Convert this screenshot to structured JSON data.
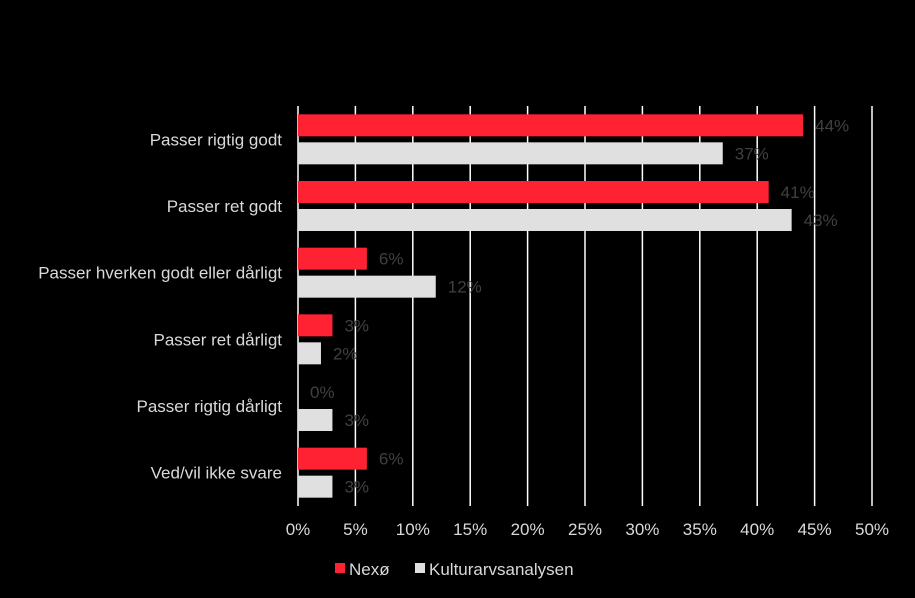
{
  "chart_data": {
    "type": "bar",
    "orientation": "horizontal",
    "categories": [
      "Passer rigtig godt",
      "Passer ret godt",
      "Passer hverken godt eller dårligt",
      "Passer ret dårligt",
      "Passer rigtig dårligt",
      "Ved/vil ikke svare"
    ],
    "series": [
      {
        "name": "Nexø",
        "color": "#ff2233",
        "values": [
          44,
          41,
          6,
          3,
          0,
          6
        ],
        "labels": [
          "44%",
          "41%",
          "6%",
          "3%",
          "0%",
          "6%"
        ]
      },
      {
        "name": "Kulturarvsanalysen",
        "color": "#e0e0e0",
        "values": [
          37,
          43,
          12,
          2,
          3,
          3
        ],
        "labels": [
          "37%",
          "43%",
          "12%",
          "2%",
          "3%",
          "3%"
        ]
      }
    ],
    "xlim": [
      0,
      50
    ],
    "x_ticks": [
      "0%",
      "5%",
      "10%",
      "15%",
      "20%",
      "25%",
      "30%",
      "35%",
      "40%",
      "45%",
      "50%"
    ],
    "grid": "vertical",
    "legend": "bottom"
  }
}
